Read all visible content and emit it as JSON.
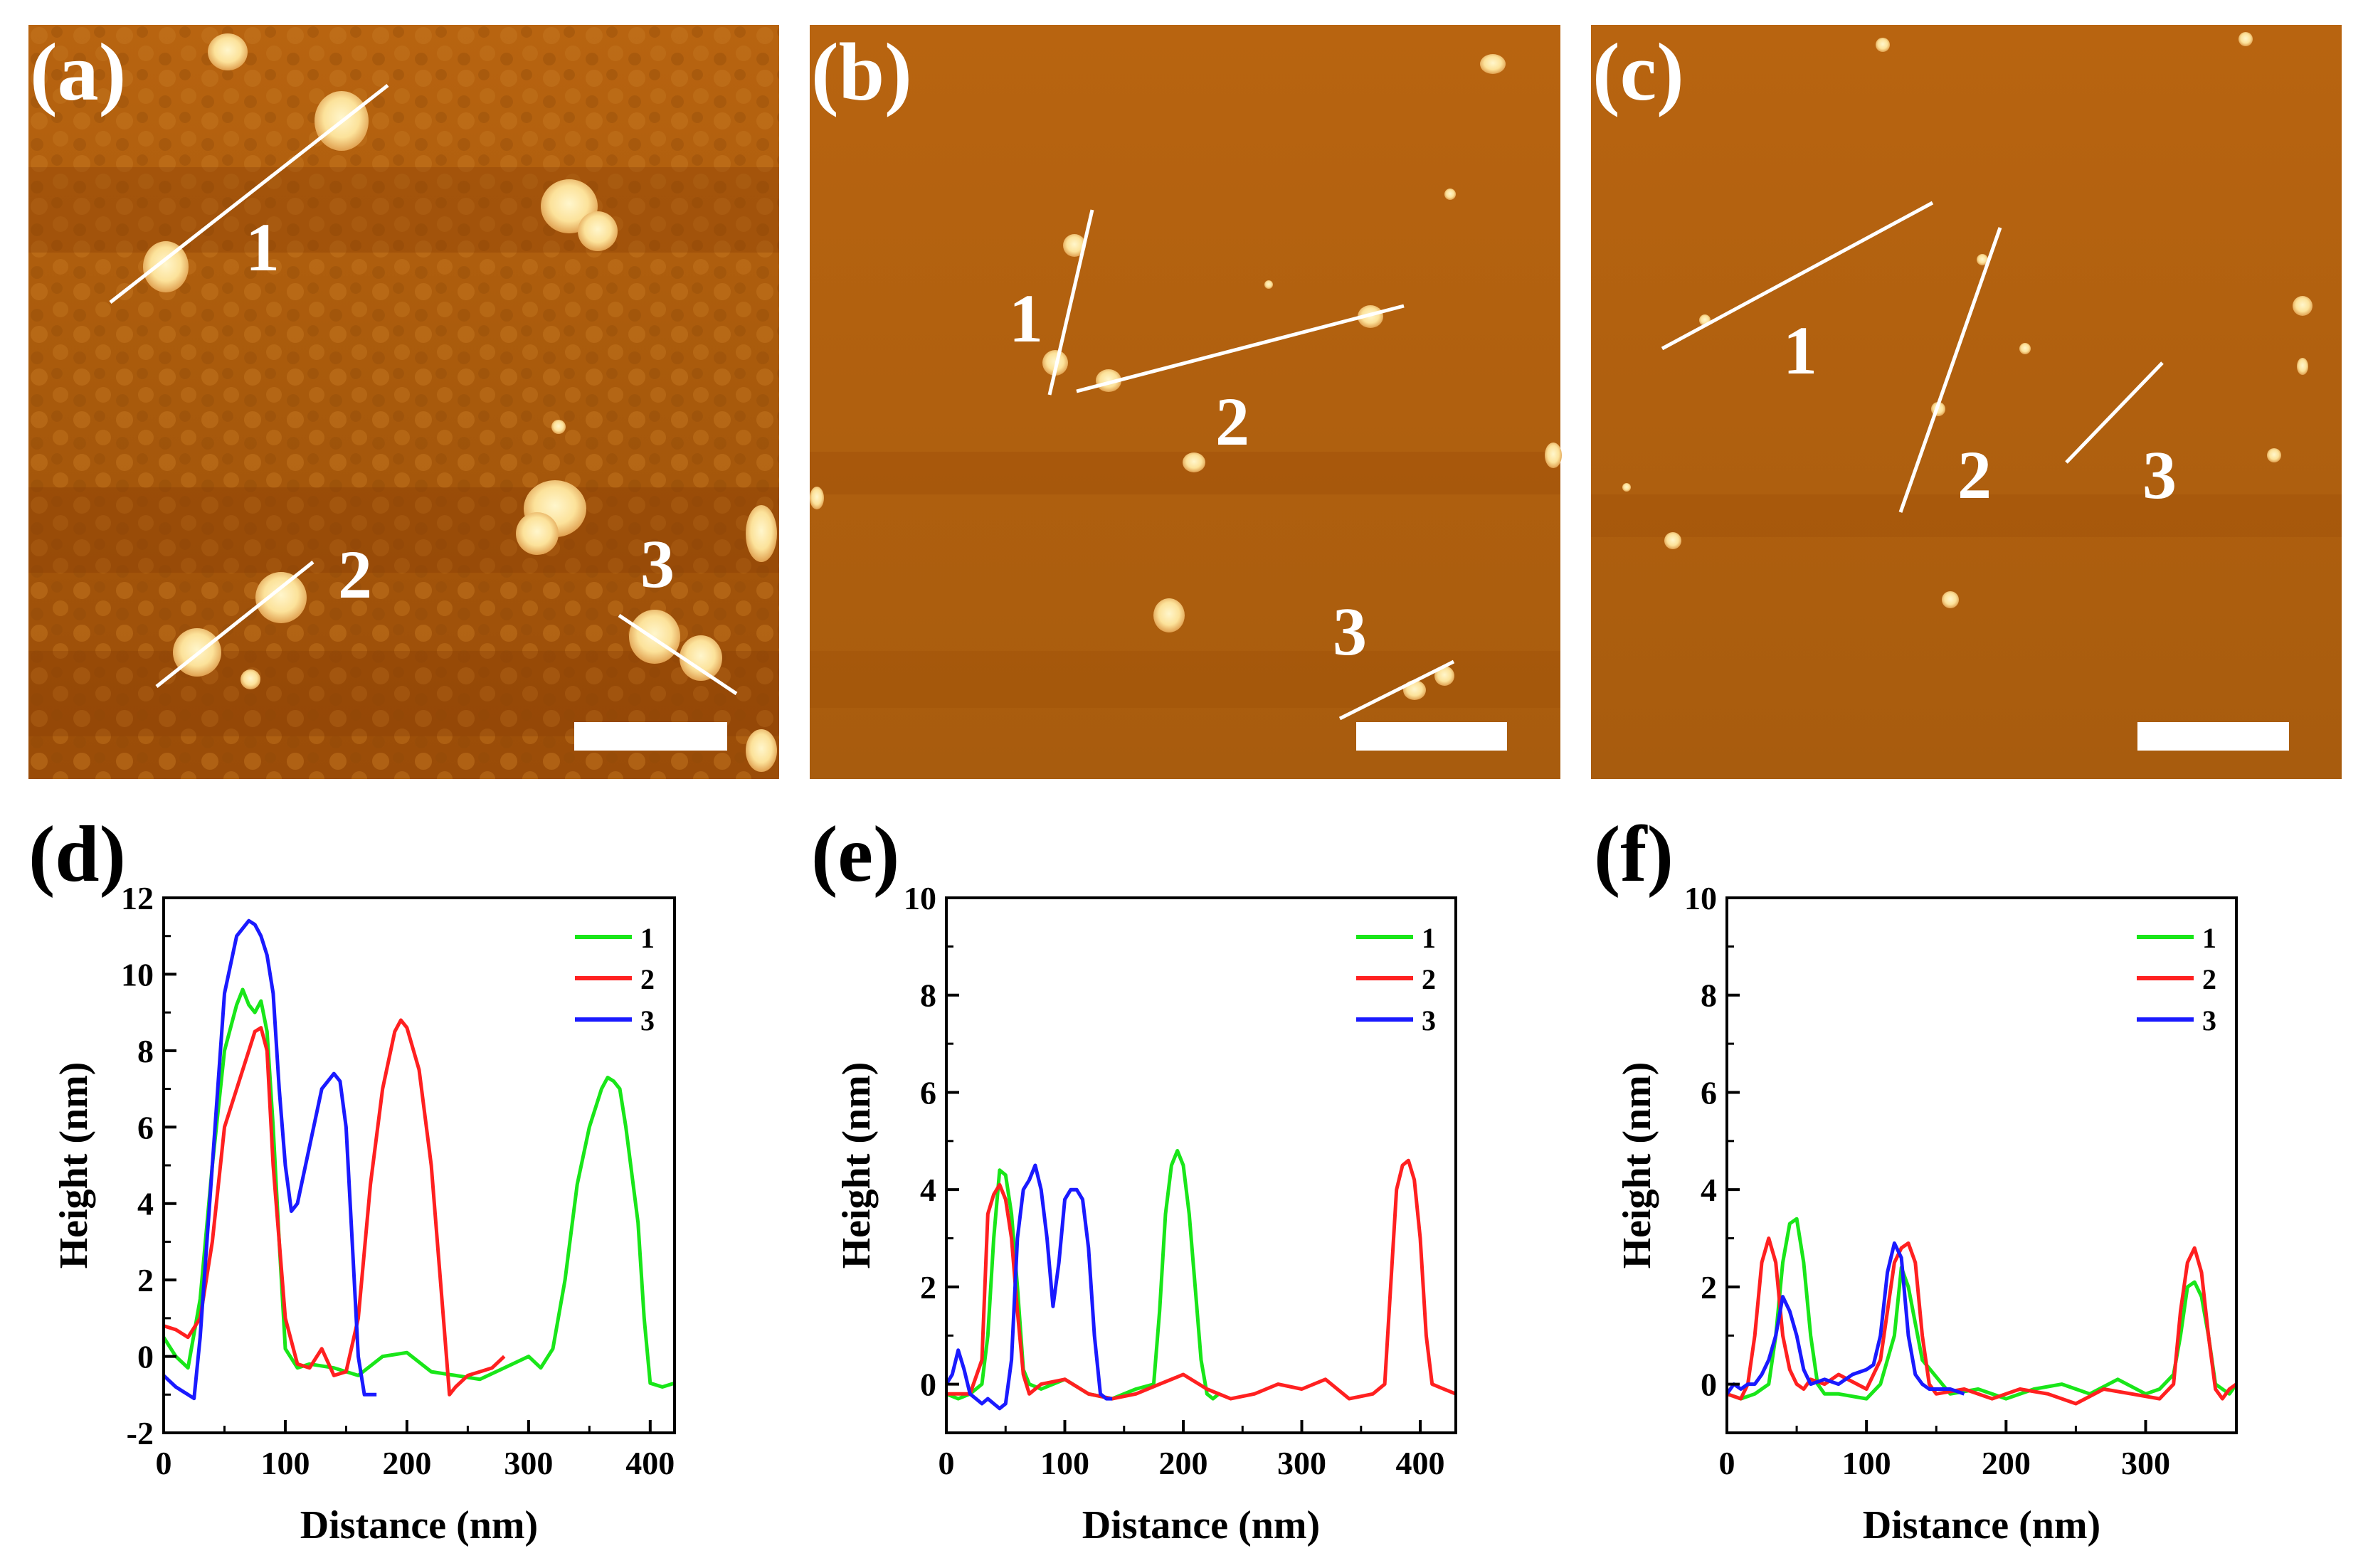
{
  "colors": {
    "afm_background_top": "#b86410",
    "afm_background_bottom": "#8e4306",
    "afm_particle": "#fce9a2",
    "afm_particle_edge": "#f0c060",
    "line_white": "#ffffff",
    "series_1": "#19e619",
    "series_2": "#ff2020",
    "series_3": "#1a1aff"
  },
  "afm_images": [
    {
      "label": "(a)",
      "line_labels": [
        "1",
        "2",
        "3"
      ],
      "scale_bar": "scale bar"
    },
    {
      "label": "(b)",
      "line_labels": [
        "1",
        "2",
        "3"
      ],
      "scale_bar": "scale bar"
    },
    {
      "label": "(c)",
      "line_labels": [
        "1",
        "2",
        "3"
      ],
      "scale_bar": "scale bar"
    }
  ],
  "chart_data": [
    {
      "label": "(d)",
      "type": "line",
      "xlabel": "Distance (nm)",
      "ylabel": "Height (nm)",
      "xlim": [
        0,
        420
      ],
      "ylim": [
        -2,
        12
      ],
      "xticks": [
        0,
        100,
        200,
        300,
        400
      ],
      "yticks": [
        -2,
        0,
        2,
        4,
        6,
        8,
        10,
        12
      ],
      "legend": [
        "1",
        "2",
        "3"
      ],
      "legend_position": "top-right",
      "series": [
        {
          "name": "1",
          "color": "#19e619",
          "x": [
            0,
            10,
            20,
            30,
            40,
            50,
            60,
            65,
            70,
            75,
            80,
            85,
            90,
            95,
            100,
            110,
            120,
            140,
            160,
            180,
            200,
            220,
            240,
            260,
            280,
            300,
            310,
            320,
            330,
            340,
            350,
            360,
            365,
            370,
            375,
            380,
            390,
            395,
            400,
            410,
            420
          ],
          "y": [
            0.5,
            0.0,
            -0.3,
            1.5,
            5.0,
            8.0,
            9.2,
            9.6,
            9.2,
            9.0,
            9.3,
            8.5,
            6.0,
            3.0,
            0.2,
            -0.3,
            -0.2,
            -0.3,
            -0.5,
            0.0,
            0.1,
            -0.4,
            -0.5,
            -0.6,
            -0.3,
            0.0,
            -0.3,
            0.2,
            2.0,
            4.5,
            6.0,
            7.0,
            7.3,
            7.2,
            7.0,
            6.0,
            3.5,
            1.0,
            -0.7,
            -0.8,
            -0.7
          ]
        },
        {
          "name": "2",
          "color": "#ff2020",
          "x": [
            0,
            10,
            20,
            30,
            40,
            50,
            60,
            70,
            75,
            80,
            85,
            90,
            100,
            110,
            120,
            130,
            140,
            150,
            160,
            170,
            180,
            190,
            195,
            200,
            210,
            220,
            230,
            235,
            240,
            250,
            260,
            270,
            280
          ],
          "y": [
            0.8,
            0.7,
            0.5,
            1.0,
            3.0,
            6.0,
            7.0,
            8.0,
            8.5,
            8.6,
            8.0,
            5.0,
            1.0,
            -0.2,
            -0.3,
            0.2,
            -0.5,
            -0.4,
            1.0,
            4.5,
            7.0,
            8.5,
            8.8,
            8.6,
            7.5,
            5.0,
            1.0,
            -1.0,
            -0.8,
            -0.5,
            -0.4,
            -0.3,
            0.0
          ]
        },
        {
          "name": "3",
          "color": "#1a1aff",
          "x": [
            0,
            10,
            20,
            25,
            30,
            40,
            50,
            60,
            70,
            75,
            80,
            85,
            90,
            95,
            100,
            105,
            110,
            120,
            130,
            140,
            145,
            150,
            155,
            160,
            165,
            170,
            175
          ],
          "y": [
            -0.5,
            -0.8,
            -1.0,
            -1.1,
            0.5,
            5.0,
            9.5,
            11.0,
            11.4,
            11.3,
            11.0,
            10.5,
            9.5,
            7.0,
            5.0,
            3.8,
            4.0,
            5.5,
            7.0,
            7.4,
            7.2,
            6.0,
            3.0,
            0.0,
            -1.0,
            -1.0,
            -1.0
          ]
        }
      ]
    },
    {
      "label": "(e)",
      "type": "line",
      "xlabel": "Distance (nm)",
      "ylabel": "Height (nm)",
      "xlim": [
        0,
        430
      ],
      "ylim": [
        -1,
        10
      ],
      "xticks": [
        0,
        100,
        200,
        300,
        400
      ],
      "yticks": [
        0,
        2,
        4,
        6,
        8,
        10
      ],
      "legend": [
        "1",
        "2",
        "3"
      ],
      "legend_position": "top-right",
      "series": [
        {
          "name": "1",
          "color": "#19e619",
          "x": [
            0,
            10,
            20,
            30,
            35,
            40,
            45,
            50,
            55,
            60,
            65,
            70,
            80,
            100,
            120,
            140,
            160,
            175,
            180,
            185,
            190,
            195,
            200,
            205,
            210,
            215,
            220,
            225,
            230
          ],
          "y": [
            -0.2,
            -0.3,
            -0.2,
            0.0,
            1.0,
            3.0,
            4.4,
            4.3,
            3.5,
            2.0,
            0.3,
            0.0,
            -0.1,
            0.1,
            -0.2,
            -0.3,
            -0.1,
            0.0,
            1.5,
            3.5,
            4.5,
            4.8,
            4.5,
            3.5,
            2.0,
            0.5,
            -0.2,
            -0.3,
            -0.2
          ]
        },
        {
          "name": "2",
          "color": "#ff2020",
          "x": [
            0,
            20,
            30,
            35,
            40,
            45,
            50,
            55,
            60,
            65,
            70,
            80,
            100,
            120,
            140,
            160,
            180,
            200,
            220,
            240,
            260,
            280,
            300,
            320,
            340,
            360,
            370,
            375,
            380,
            385,
            390,
            395,
            400,
            405,
            410,
            420,
            430
          ],
          "y": [
            -0.2,
            -0.2,
            0.5,
            3.5,
            3.9,
            4.1,
            3.8,
            3.0,
            1.5,
            0.2,
            -0.2,
            0.0,
            0.1,
            -0.2,
            -0.3,
            -0.2,
            0.0,
            0.2,
            -0.1,
            -0.3,
            -0.2,
            0.0,
            -0.1,
            0.1,
            -0.3,
            -0.2,
            0.0,
            2.0,
            4.0,
            4.5,
            4.6,
            4.2,
            3.0,
            1.0,
            0.0,
            -0.1,
            -0.2
          ]
        },
        {
          "name": "3",
          "color": "#1a1aff",
          "x": [
            0,
            5,
            10,
            15,
            20,
            25,
            30,
            35,
            40,
            45,
            50,
            55,
            60,
            65,
            70,
            75,
            80,
            85,
            90,
            95,
            100,
            105,
            110,
            115,
            120,
            125,
            130,
            135,
            140
          ],
          "y": [
            0.0,
            0.2,
            0.7,
            0.3,
            -0.2,
            -0.3,
            -0.4,
            -0.3,
            -0.4,
            -0.5,
            -0.4,
            0.5,
            3.0,
            4.0,
            4.2,
            4.5,
            4.0,
            3.0,
            1.6,
            2.5,
            3.8,
            4.0,
            4.0,
            3.8,
            2.8,
            1.0,
            -0.2,
            -0.3,
            -0.3
          ]
        }
      ]
    },
    {
      "label": "(f)",
      "type": "line",
      "xlabel": "Distance (nm)",
      "ylabel": "Height (nm)",
      "xlim": [
        0,
        365
      ],
      "ylim": [
        -1,
        10
      ],
      "xticks": [
        0,
        100,
        200,
        300
      ],
      "yticks": [
        0,
        2,
        4,
        6,
        8,
        10
      ],
      "legend": [
        "1",
        "2",
        "3"
      ],
      "legend_position": "top-right",
      "series": [
        {
          "name": "1",
          "color": "#19e619",
          "x": [
            0,
            10,
            20,
            30,
            35,
            40,
            45,
            50,
            55,
            60,
            65,
            70,
            80,
            100,
            110,
            120,
            125,
            130,
            140,
            160,
            180,
            200,
            220,
            240,
            260,
            280,
            300,
            310,
            320,
            325,
            330,
            335,
            340,
            345,
            350,
            355,
            360,
            365
          ],
          "y": [
            -0.2,
            -0.3,
            -0.2,
            0.0,
            1.0,
            2.5,
            3.3,
            3.4,
            2.5,
            1.0,
            0.0,
            -0.2,
            -0.2,
            -0.3,
            0.0,
            1.0,
            2.4,
            2.0,
            0.5,
            -0.2,
            -0.1,
            -0.3,
            -0.1,
            0.0,
            -0.2,
            0.1,
            -0.2,
            -0.1,
            0.2,
            1.0,
            2.0,
            2.1,
            1.8,
            1.0,
            0.0,
            -0.1,
            -0.2,
            0.0
          ]
        },
        {
          "name": "2",
          "color": "#ff2020",
          "x": [
            0,
            10,
            15,
            20,
            25,
            30,
            35,
            40,
            45,
            50,
            55,
            60,
            70,
            80,
            100,
            110,
            115,
            120,
            125,
            130,
            135,
            140,
            145,
            150,
            170,
            190,
            210,
            230,
            250,
            270,
            290,
            310,
            320,
            325,
            330,
            335,
            340,
            345,
            350,
            355,
            360,
            365
          ],
          "y": [
            -0.2,
            -0.3,
            0.0,
            1.0,
            2.5,
            3.0,
            2.5,
            1.0,
            0.3,
            0.0,
            -0.1,
            0.1,
            0.0,
            0.2,
            -0.1,
            0.5,
            1.5,
            2.5,
            2.8,
            2.9,
            2.5,
            1.0,
            0.0,
            -0.2,
            -0.1,
            -0.3,
            -0.1,
            -0.2,
            -0.4,
            -0.1,
            -0.2,
            -0.3,
            0.0,
            1.5,
            2.5,
            2.8,
            2.3,
            1.0,
            -0.1,
            -0.3,
            -0.1,
            0.0
          ]
        },
        {
          "name": "3",
          "color": "#1a1aff",
          "x": [
            0,
            5,
            10,
            15,
            20,
            25,
            30,
            35,
            40,
            45,
            50,
            55,
            60,
            70,
            80,
            90,
            100,
            105,
            110,
            115,
            120,
            125,
            130,
            135,
            140,
            145,
            150,
            160,
            170
          ],
          "y": [
            -0.2,
            0.0,
            -0.1,
            0.0,
            0.0,
            0.2,
            0.5,
            1.0,
            1.8,
            1.5,
            1.0,
            0.3,
            0.0,
            0.1,
            0.0,
            0.2,
            0.3,
            0.4,
            1.0,
            2.3,
            2.9,
            2.6,
            1.0,
            0.2,
            0.0,
            -0.1,
            -0.1,
            -0.1,
            -0.2
          ]
        }
      ]
    }
  ]
}
